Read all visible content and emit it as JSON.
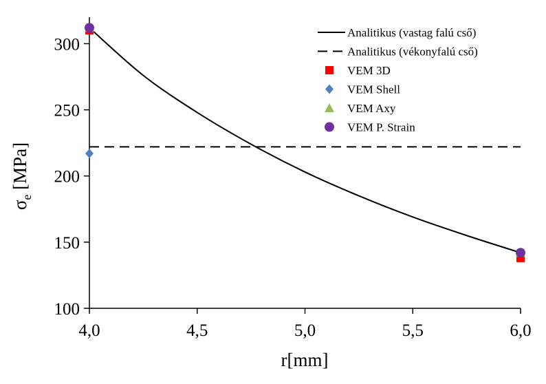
{
  "chart_data": {
    "type": "line",
    "xlabel": "r[mm]",
    "ylabel": "σ",
    "ylabel_sub": "e",
    "ylabel_unit": " [MPa]",
    "xlim": [
      4.0,
      6.0
    ],
    "ylim": [
      100,
      320
    ],
    "x_ticks": [
      4.0,
      4.5,
      5.0,
      5.5,
      6.0
    ],
    "x_tick_labels": [
      "4,0",
      "4,5",
      "5,0",
      "5,5",
      "6,0"
    ],
    "y_ticks": [
      100,
      150,
      200,
      250,
      300
    ],
    "y_tick_labels": [
      "100",
      "150",
      "200",
      "250",
      "300"
    ],
    "grid": false,
    "legend_position": "top-right",
    "series": [
      {
        "name": "Analitikus (vastag falú cső)",
        "kind": "line",
        "style": "solid",
        "color": "#000000",
        "x": [
          4.0,
          4.25,
          4.5,
          4.75,
          5.0,
          5.25,
          5.5,
          5.75,
          6.0
        ],
        "y": [
          312,
          276,
          248,
          224,
          203,
          185,
          169,
          155,
          142
        ]
      },
      {
        "name": "Analitikus (vékonyfalú cső)",
        "kind": "line",
        "style": "dashed",
        "color": "#000000",
        "x": [
          4.0,
          6.0
        ],
        "y": [
          222,
          222
        ]
      },
      {
        "name": "VEM 3D",
        "kind": "marker",
        "marker": "square",
        "color": "#ff0000",
        "x": [
          4.0,
          6.0
        ],
        "y": [
          310,
          138
        ]
      },
      {
        "name": "VEM Shell",
        "kind": "marker",
        "marker": "diamond",
        "color": "#4f81bd",
        "x": [
          4.0
        ],
        "y": [
          217
        ]
      },
      {
        "name": "VEM Axy",
        "kind": "marker",
        "marker": "triangle",
        "color": "#9bbb59",
        "x": [
          4.0,
          6.0
        ],
        "y": [
          312,
          142
        ]
      },
      {
        "name": "VEM P. Strain",
        "kind": "marker",
        "marker": "circle",
        "color": "#7030a0",
        "x": [
          4.0,
          6.0
        ],
        "y": [
          312,
          142
        ]
      }
    ]
  }
}
